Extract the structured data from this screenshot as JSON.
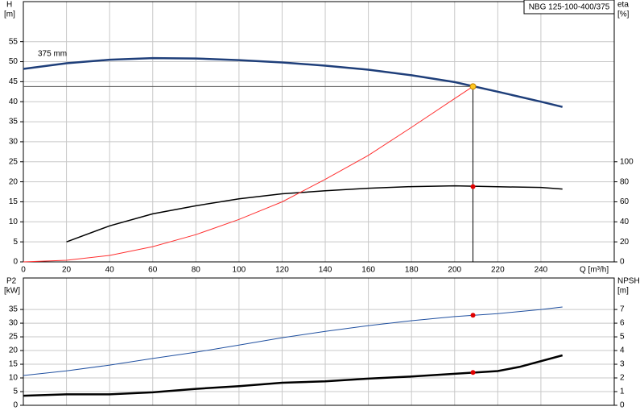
{
  "chart_data": [
    {
      "type": "line",
      "title": "NBG 125-100-400/375",
      "annotation": "375 mm",
      "y_label": "H",
      "y_unit": "[m]",
      "y2_label": "eta",
      "y2_unit": "[%]",
      "x_label": "Q [m³/h]",
      "xlim": [
        0,
        274
      ],
      "xticks": [
        0,
        20,
        40,
        60,
        80,
        100,
        120,
        140,
        160,
        180,
        200,
        220,
        240
      ],
      "ylim": [
        0,
        65
      ],
      "yticks": [
        0,
        5,
        10,
        15,
        20,
        25,
        30,
        35,
        40,
        45,
        50,
        55
      ],
      "y2lim": [
        0,
        260
      ],
      "y2ticks": [
        0,
        20,
        40,
        60,
        80,
        100
      ],
      "grid": true,
      "xtick_labels": true,
      "series": [
        {
          "color": "#1f3f7a",
          "width": 2.5,
          "axis": "y",
          "x": [
            0,
            20,
            40,
            60,
            80,
            100,
            120,
            140,
            160,
            180,
            200,
            220,
            240,
            250
          ],
          "values": [
            48.2,
            49.6,
            50.5,
            50.9,
            50.8,
            50.4,
            49.8,
            49.0,
            48.0,
            46.6,
            44.9,
            42.5,
            40.0,
            38.7
          ]
        },
        {
          "color": "#000000",
          "width": 1.5,
          "axis": "y2",
          "x": [
            20,
            40,
            60,
            80,
            100,
            120,
            140,
            160,
            180,
            200,
            220,
            240,
            250
          ],
          "values": [
            20,
            36,
            48,
            56,
            63,
            68,
            71,
            73.6,
            75.2,
            76,
            75,
            74.4,
            72.8
          ]
        },
        {
          "color": "#ff3030",
          "width": 1,
          "axis": "y",
          "x": [
            0,
            20,
            40,
            60,
            80,
            100,
            120,
            140,
            160,
            180,
            200,
            208.5
          ],
          "values": [
            0,
            0.4,
            1.6,
            3.8,
            6.8,
            10.6,
            15,
            20.6,
            26.6,
            33.6,
            40.8,
            43.8
          ]
        }
      ],
      "duty_point": {
        "q": 208.5,
        "h": 43.8,
        "eta": 75.2
      }
    },
    {
      "type": "line",
      "y_label": "P2",
      "y_unit": "[kW]",
      "y2_label": "NPSH",
      "y2_unit": "[m]",
      "xlim": [
        0,
        274
      ],
      "xticks": [
        0,
        20,
        40,
        60,
        80,
        100,
        120,
        140,
        160,
        180,
        200,
        220,
        240
      ],
      "ylim": [
        0,
        46.5
      ],
      "yticks": [
        0,
        5,
        10,
        15,
        20,
        25,
        30,
        35
      ],
      "y2lim": [
        0,
        9.3
      ],
      "y2ticks": [
        0,
        1,
        2,
        3,
        4,
        5,
        6,
        7
      ],
      "grid": true,
      "xtick_labels": false,
      "series": [
        {
          "color": "#2050a0",
          "width": 1,
          "axis": "y",
          "x": [
            0,
            20,
            40,
            60,
            80,
            100,
            120,
            140,
            160,
            180,
            200,
            220,
            240,
            250
          ],
          "values": [
            10.9,
            12.6,
            14.7,
            17.1,
            19.4,
            22,
            24.7,
            27,
            29.1,
            30.9,
            32.4,
            33.5,
            35,
            35.9
          ]
        },
        {
          "color": "#000000",
          "width": 2.5,
          "axis": "y2",
          "x": [
            0,
            20,
            40,
            60,
            80,
            100,
            120,
            140,
            160,
            180,
            200,
            220,
            230,
            250
          ],
          "values": [
            0.7,
            0.8,
            0.8,
            0.95,
            1.2,
            1.4,
            1.65,
            1.75,
            1.95,
            2.1,
            2.3,
            2.5,
            2.8,
            3.65
          ]
        }
      ],
      "duty_point": {
        "q": 208.5,
        "p2": 32.9,
        "npsh": 2.4
      }
    }
  ]
}
